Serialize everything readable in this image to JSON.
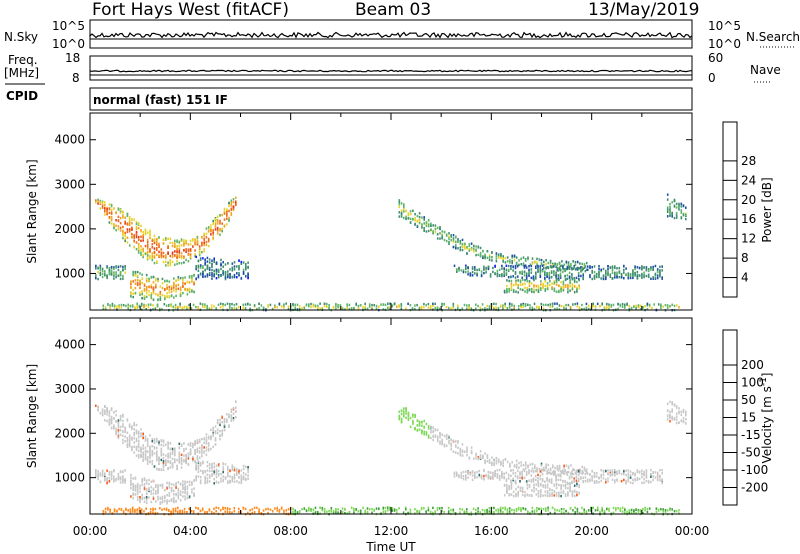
{
  "header": {
    "title": "Fort Hays West (fitACF)",
    "beam": "Beam 03",
    "date": "13/May/2019"
  },
  "top_panels": {
    "nsky_label": "N.Sky",
    "nsearch_label": "N.Search",
    "nsky_ticks": [
      "10^5",
      "10^0"
    ],
    "nsky_right_ticks": [
      "10^5",
      "10^0"
    ],
    "freq_label": "Freq.",
    "freq_unit": "[MHz]",
    "freq_ticks": [
      "18",
      "8"
    ],
    "nave_label": "Nave",
    "nave_ticks": [
      "60",
      "0"
    ],
    "cpid_label": "CPID",
    "cpid_mode": "normal (fast) 151 IF"
  },
  "colors": {
    "power_scale": [
      "#1616ff",
      "#1f4ea8",
      "#3f8f6e",
      "#5fb36a",
      "#e8d22a",
      "#f0a424",
      "#ee6a1c",
      "#e43a16",
      "#ff0000"
    ],
    "velocity_scale": [
      "#ff1e1e",
      "#ff5a14",
      "#ff8c1e",
      "#ffb83c",
      "#c8c8c8",
      "#c8c8c8",
      "#7ed957",
      "#3ca03c",
      "#2e6e70",
      "#1e3fbf"
    ]
  },
  "chart_data": [
    {
      "type": "heatmap",
      "name": "power",
      "ylabel": "Slant Range [km]",
      "yticks": [
        1000,
        2000,
        3000,
        4000
      ],
      "ylim": [
        180,
        4600
      ],
      "xlim": [
        0,
        24
      ],
      "colorbar_label": "Power [dB]",
      "colorbar_ticks": [
        4,
        8,
        12,
        16,
        20,
        24,
        28
      ],
      "colorbar_range": [
        0,
        32
      ],
      "scatter_regions": [
        {
          "t0": 0.2,
          "t1": 5.8,
          "r_top": [
            2700,
            2600,
            2400,
            2100,
            1900,
            1800,
            1800,
            2000,
            2400,
            2800
          ],
          "r_bot": [
            2600,
            2100,
            1700,
            1400,
            1200,
            1200,
            1300,
            1500,
            1900,
            2400
          ],
          "core_power": 26
        },
        {
          "t0": 0.2,
          "t1": 1.4,
          "r_top": [
            1200,
            1200
          ],
          "r_bot": [
            900,
            900
          ],
          "core_power": 12
        },
        {
          "t0": 1.6,
          "t1": 4.2,
          "r_top": [
            1100,
            900,
            1000
          ],
          "r_bot": [
            500,
            400,
            600
          ],
          "core_power": 22
        },
        {
          "t0": 4.2,
          "t1": 6.3,
          "r_top": [
            1400,
            1300
          ],
          "r_bot": [
            900,
            900
          ],
          "core_power": 8
        },
        {
          "t0": 12.3,
          "t1": 19.8,
          "r_top": [
            2700,
            2200,
            1800,
            1500,
            1400,
            1300,
            1300
          ],
          "r_bot": [
            2300,
            1900,
            1500,
            1300,
            1200,
            1100,
            1100
          ],
          "core_power": 14
        },
        {
          "t0": 14.5,
          "t1": 22.8,
          "r_top": [
            1200,
            1200,
            1200,
            1200
          ],
          "r_bot": [
            1000,
            900,
            900,
            900
          ],
          "core_power": 10
        },
        {
          "t0": 16.5,
          "t1": 19.5,
          "r_top": [
            900,
            900
          ],
          "r_bot": [
            600,
            600
          ],
          "core_power": 18
        },
        {
          "t0": 23.0,
          "t1": 23.8,
          "r_top": [
            2800,
            2500
          ],
          "r_bot": [
            2300,
            2200
          ],
          "core_power": 12
        },
        {
          "t0": 0.5,
          "t1": 23.5,
          "r_top": [
            350,
            350
          ],
          "r_bot": [
            200,
            200
          ],
          "core_power": 16
        }
      ]
    },
    {
      "type": "heatmap",
      "name": "velocity",
      "ylabel": "Slant Range [km]",
      "yticks": [
        1000,
        2000,
        3000,
        4000
      ],
      "ylim": [
        180,
        4600
      ],
      "xlim": [
        0,
        24
      ],
      "xlabel": "Time UT",
      "xtick_labels": [
        "00:00",
        "04:00",
        "08:00",
        "12:00",
        "16:00",
        "20:00",
        "00:00"
      ],
      "colorbar_label": "Velocity [m s^-1]",
      "colorbar_ticks": [
        "-200",
        "-100",
        "-50",
        "-15",
        "15",
        "50",
        "100",
        "200"
      ],
      "scatter_regions": [
        {
          "t0": 0.2,
          "t1": 5.8,
          "velocity": 0
        },
        {
          "t0": 12.3,
          "t1": 22.8,
          "velocity": 0
        },
        {
          "t0": 12.3,
          "t1": 13.5,
          "velocity": 40
        },
        {
          "t0": 0.5,
          "t1": 8.0,
          "velocity": -60
        },
        {
          "t0": 8.0,
          "t1": 23.5,
          "velocity": 40
        }
      ]
    }
  ]
}
